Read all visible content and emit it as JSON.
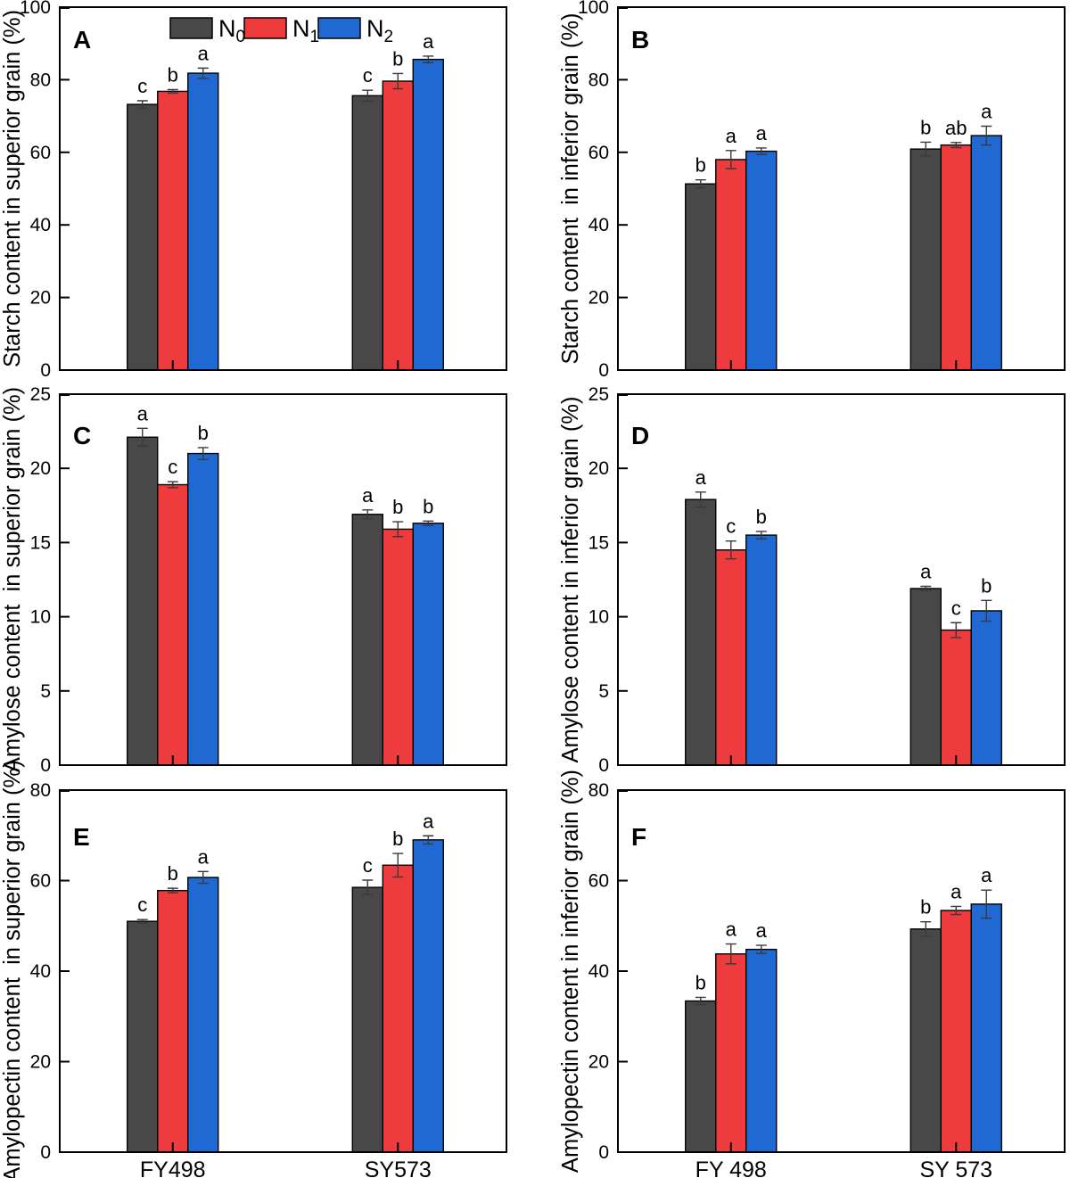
{
  "figure": {
    "background": "#ffffff",
    "axis_color": "#000000",
    "error_bar_color": "#3a3a3a",
    "legend": {
      "entries": [
        {
          "base": "N",
          "sub": "0",
          "color": "#484848"
        },
        {
          "base": "N",
          "sub": "1",
          "color": "#ee3b3d"
        },
        {
          "base": "N",
          "sub": "2",
          "color": "#2069d2"
        }
      ]
    }
  },
  "chart_data": [
    {
      "panel": "A",
      "type": "bar",
      "ylabel": "Starch content in superior grain (%)",
      "ylim": [
        0,
        100
      ],
      "yticks": [
        0,
        20,
        40,
        60,
        80,
        100
      ],
      "categories": [
        "FY498",
        "SY573"
      ],
      "show_category_labels": false,
      "grid": false,
      "series": [
        {
          "name": "N0",
          "color": "#484848",
          "values": [
            73.2,
            75.6
          ],
          "errors": [
            1.0,
            1.5
          ],
          "letters": [
            "c",
            "c"
          ]
        },
        {
          "name": "N1",
          "color": "#ee3b3d",
          "values": [
            76.8,
            79.6
          ],
          "errors": [
            0.5,
            2.1
          ],
          "letters": [
            "b",
            "b"
          ]
        },
        {
          "name": "N2",
          "color": "#2069d2",
          "values": [
            81.8,
            85.6
          ],
          "errors": [
            1.4,
            0.9
          ],
          "letters": [
            "a",
            "a"
          ]
        }
      ]
    },
    {
      "panel": "B",
      "type": "bar",
      "ylabel": "Starch content  in inferior grain (%)",
      "ylim": [
        0,
        100
      ],
      "yticks": [
        0,
        20,
        40,
        60,
        80,
        100
      ],
      "categories": [
        "FY498",
        "SY573"
      ],
      "show_category_labels": false,
      "grid": false,
      "series": [
        {
          "name": "N0",
          "color": "#484848",
          "values": [
            51.3,
            60.9
          ],
          "errors": [
            1.1,
            1.9
          ],
          "letters": [
            "b",
            "b"
          ]
        },
        {
          "name": "N1",
          "color": "#ee3b3d",
          "values": [
            58.0,
            62.0
          ],
          "errors": [
            2.5,
            0.7
          ],
          "letters": [
            "a",
            "ab"
          ]
        },
        {
          "name": "N2",
          "color": "#2069d2",
          "values": [
            60.3,
            64.6
          ],
          "errors": [
            0.9,
            2.6
          ],
          "letters": [
            "a",
            "a"
          ]
        }
      ]
    },
    {
      "panel": "C",
      "type": "bar",
      "ylabel": "Amylose content  in superior grain (%)",
      "ylim": [
        0,
        25
      ],
      "yticks": [
        0,
        5,
        10,
        15,
        20,
        25
      ],
      "categories": [
        "FY498",
        "SY573"
      ],
      "show_category_labels": false,
      "grid": false,
      "series": [
        {
          "name": "N0",
          "color": "#484848",
          "values": [
            22.1,
            16.9
          ],
          "errors": [
            0.6,
            0.3
          ],
          "letters": [
            "a",
            "a"
          ]
        },
        {
          "name": "N1",
          "color": "#ee3b3d",
          "values": [
            18.9,
            15.9
          ],
          "errors": [
            0.2,
            0.5
          ],
          "letters": [
            "c",
            "b"
          ]
        },
        {
          "name": "N2",
          "color": "#2069d2",
          "values": [
            21.0,
            16.3
          ],
          "errors": [
            0.4,
            0.15
          ],
          "letters": [
            "b",
            "b"
          ]
        }
      ]
    },
    {
      "panel": "D",
      "type": "bar",
      "ylabel": "Amylose content in inferior grain (%)",
      "ylim": [
        0,
        25
      ],
      "yticks": [
        0,
        5,
        10,
        15,
        20,
        25
      ],
      "categories": [
        "FY498",
        "SY573"
      ],
      "show_category_labels": false,
      "grid": false,
      "series": [
        {
          "name": "N0",
          "color": "#484848",
          "values": [
            17.9,
            11.9
          ],
          "errors": [
            0.5,
            0.15
          ],
          "letters": [
            "a",
            "a"
          ]
        },
        {
          "name": "N1",
          "color": "#ee3b3d",
          "values": [
            14.5,
            9.1
          ],
          "errors": [
            0.6,
            0.5
          ],
          "letters": [
            "c",
            "c"
          ]
        },
        {
          "name": "N2",
          "color": "#2069d2",
          "values": [
            15.5,
            10.4
          ],
          "errors": [
            0.25,
            0.7
          ],
          "letters": [
            "b",
            "b"
          ]
        }
      ]
    },
    {
      "panel": "E",
      "type": "bar",
      "ylabel": "Amylopectin content  in superior grain (%)",
      "ylim": [
        0,
        80
      ],
      "yticks": [
        0,
        20,
        40,
        60,
        80
      ],
      "categories": [
        "FY498",
        "SY573"
      ],
      "show_category_labels": true,
      "grid": false,
      "series": [
        {
          "name": "N0",
          "color": "#484848",
          "values": [
            51.0,
            58.5
          ],
          "errors": [
            0.4,
            1.6
          ],
          "letters": [
            "c",
            "c"
          ]
        },
        {
          "name": "N1",
          "color": "#ee3b3d",
          "values": [
            57.8,
            63.4
          ],
          "errors": [
            0.5,
            2.6
          ],
          "letters": [
            "b",
            "b"
          ]
        },
        {
          "name": "N2",
          "color": "#2069d2",
          "values": [
            60.7,
            69.0
          ],
          "errors": [
            1.3,
            0.9
          ],
          "letters": [
            "a",
            "a"
          ]
        }
      ]
    },
    {
      "panel": "F",
      "type": "bar",
      "ylabel": "Amylopectin content in inferior grain (%)",
      "ylim": [
        0,
        80
      ],
      "yticks": [
        0,
        20,
        40,
        60,
        80
      ],
      "categories": [
        "FY 498",
        "SY 573"
      ],
      "show_category_labels": true,
      "grid": false,
      "series": [
        {
          "name": "N0",
          "color": "#484848",
          "values": [
            33.4,
            49.3
          ],
          "errors": [
            0.8,
            1.6
          ],
          "letters": [
            "b",
            "b"
          ]
        },
        {
          "name": "N1",
          "color": "#ee3b3d",
          "values": [
            43.8,
            53.4
          ],
          "errors": [
            2.2,
            0.9
          ],
          "letters": [
            "a",
            "a"
          ]
        },
        {
          "name": "N2",
          "color": "#2069d2",
          "values": [
            44.8,
            54.8
          ],
          "errors": [
            0.9,
            3.1
          ],
          "letters": [
            "a",
            "a"
          ]
        }
      ]
    }
  ]
}
